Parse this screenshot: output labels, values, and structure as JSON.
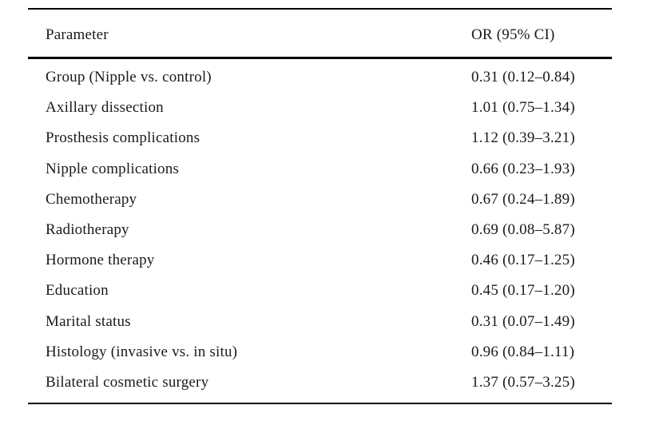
{
  "table": {
    "headers": {
      "parameter": "Parameter",
      "or_ci": "OR (95% CI)"
    },
    "rows": [
      {
        "parameter": "Group (Nipple vs. control)",
        "or_ci": "0.31 (0.12–0.84)"
      },
      {
        "parameter": "Axillary dissection",
        "or_ci": "1.01 (0.75–1.34)"
      },
      {
        "parameter": "Prosthesis complications",
        "or_ci": "1.12 (0.39–3.21)"
      },
      {
        "parameter": "Nipple complications",
        "or_ci": "0.66 (0.23–1.93)"
      },
      {
        "parameter": "Chemotherapy",
        "or_ci": "0.67 (0.24–1.89)"
      },
      {
        "parameter": "Radiotherapy",
        "or_ci": "0.69 (0.08–5.87)"
      },
      {
        "parameter": "Hormone therapy",
        "or_ci": "0.46 (0.17–1.25)"
      },
      {
        "parameter": "Education",
        "or_ci": "0.45 (0.17–1.20)"
      },
      {
        "parameter": "Marital status",
        "or_ci": "0.31 (0.07–1.49)"
      },
      {
        "parameter": "Histology (invasive vs. in situ)",
        "or_ci": "0.96 (0.84–1.11)"
      },
      {
        "parameter": "Bilateral cosmetic surgery",
        "or_ci": "1.37 (0.57–3.25)"
      }
    ]
  },
  "colors": {
    "background": "#ffffff",
    "text": "#1a1a1a",
    "rule": "#000000"
  }
}
